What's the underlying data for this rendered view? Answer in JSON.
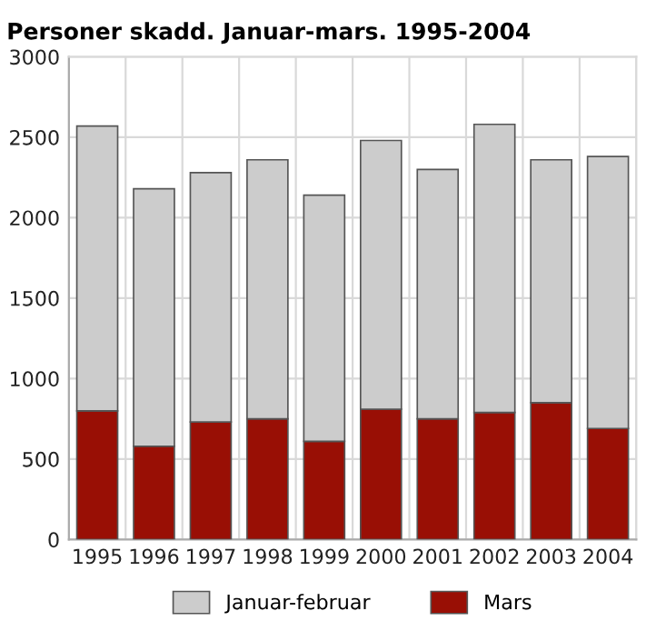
{
  "chart_data": {
    "type": "bar",
    "title": "Personer skadd. Januar-mars. 1995-2004",
    "categories": [
      "1995",
      "1996",
      "1997",
      "1998",
      "1999",
      "2000",
      "2001",
      "2002",
      "2003",
      "2004"
    ],
    "stacked": true,
    "series": [
      {
        "name": "Mars",
        "color": "#990f05",
        "values": [
          800,
          580,
          730,
          750,
          610,
          810,
          750,
          790,
          850,
          690
        ]
      },
      {
        "name": "Januar-februar",
        "color": "#cccccc",
        "values": [
          1770,
          1600,
          1550,
          1610,
          1530,
          1670,
          1550,
          1790,
          1510,
          1690
        ]
      }
    ],
    "ylim": [
      0,
      3000
    ],
    "yticks": [
      0,
      500,
      1000,
      1500,
      2000,
      2500,
      3000
    ],
    "grid": true,
    "legend": "bottom"
  }
}
